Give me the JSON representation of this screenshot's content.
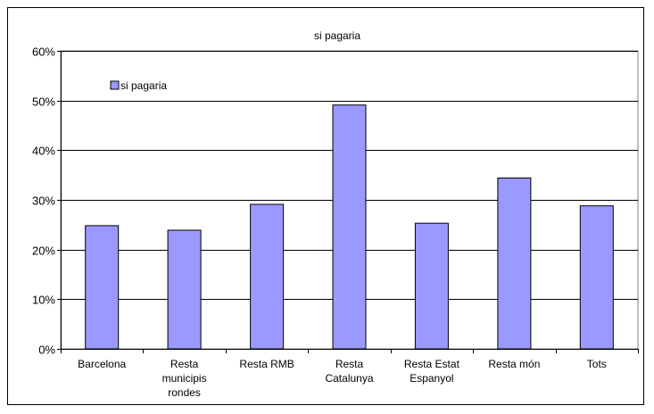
{
  "chart_data": {
    "type": "bar",
    "title": "si pagaria",
    "xlabel": "",
    "ylabel": "",
    "categories": [
      [
        "Barcelona"
      ],
      [
        "Resta",
        "municipis",
        "rondes"
      ],
      [
        "Resta RMB"
      ],
      [
        "Resta",
        "Catalunya"
      ],
      [
        "Resta Estat",
        "Espanyol"
      ],
      [
        "Resta món"
      ],
      [
        "Tots"
      ]
    ],
    "series": [
      {
        "name": "si pagaria",
        "values": [
          24.8,
          23.9,
          29.1,
          49.1,
          25.3,
          34.4,
          28.8
        ],
        "color": "#9999ff"
      }
    ],
    "y_ticks": [
      "0%",
      "10%",
      "20%",
      "30%",
      "40%",
      "50%",
      "60%"
    ],
    "ylim": [
      0,
      60
    ],
    "y_tick_values": [
      0,
      10,
      20,
      30,
      40,
      50,
      60
    ],
    "grid": true,
    "legend_position": "top-left",
    "plot_background": "#ffffff",
    "bar_outline": "#000000"
  }
}
